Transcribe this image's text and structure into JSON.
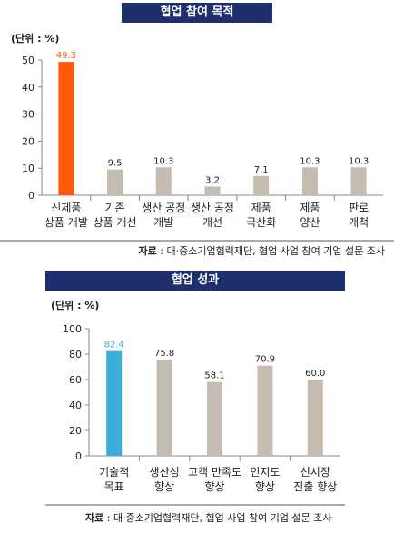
{
  "chart_data": [
    {
      "type": "bar",
      "title": "협업 참여 목적",
      "unit_label": "(단위 : %)",
      "categories": [
        [
          "신제품",
          "상품 개발"
        ],
        [
          "기존",
          "상품 개선"
        ],
        [
          "생산 공정",
          "개발"
        ],
        [
          "생산 공정",
          "개선"
        ],
        [
          "제품",
          "국산화"
        ],
        [
          "제품",
          "양산"
        ],
        [
          "판로",
          "개척"
        ]
      ],
      "values": [
        49.3,
        9.5,
        10.3,
        3.2,
        7.1,
        10.3,
        10.3
      ],
      "value_labels": [
        "49.3",
        "9.5",
        "10.3",
        "3.2",
        "7.1",
        "10.3",
        "10.3"
      ],
      "ylim": [
        0,
        50
      ],
      "yticks": [
        "0",
        "10",
        "20",
        "30",
        "40",
        "50"
      ],
      "highlight_index": 0,
      "colors": {
        "bar": "#c4bcb1",
        "highlight": "#ff5a0a",
        "highlight_label": "#ff5a0a",
        "banner": "#1e2f6b"
      },
      "source_label": "자료",
      "source_text": " : 대·중소기업협력재단, 협업 사업 참여 기업 설문 조사"
    },
    {
      "type": "bar",
      "title": "협업 성과",
      "unit_label": "(단위 : %)",
      "categories": [
        [
          "기술적",
          "목표"
        ],
        [
          "생산성",
          "향상"
        ],
        [
          "고객 만족도",
          "향상"
        ],
        [
          "인지도",
          "향상"
        ],
        [
          "신시장",
          "진출 향상"
        ]
      ],
      "values": [
        82.4,
        75.8,
        58.1,
        70.9,
        60.0
      ],
      "value_labels": [
        "82.4",
        "75.8",
        "58.1",
        "70.9",
        "60.0"
      ],
      "ylim": [
        0,
        100
      ],
      "yticks": [
        "0",
        "20",
        "40",
        "60",
        "80",
        "100"
      ],
      "highlight_index": 0,
      "colors": {
        "bar": "#c4bcb1",
        "highlight": "#3aaed8",
        "highlight_label": "#3aaed8",
        "banner": "#1e2f6b"
      },
      "source_label": "자료",
      "source_text": " : 대·중소기업협력재단, 협업 사업 참여 기업 설문 조사"
    }
  ]
}
